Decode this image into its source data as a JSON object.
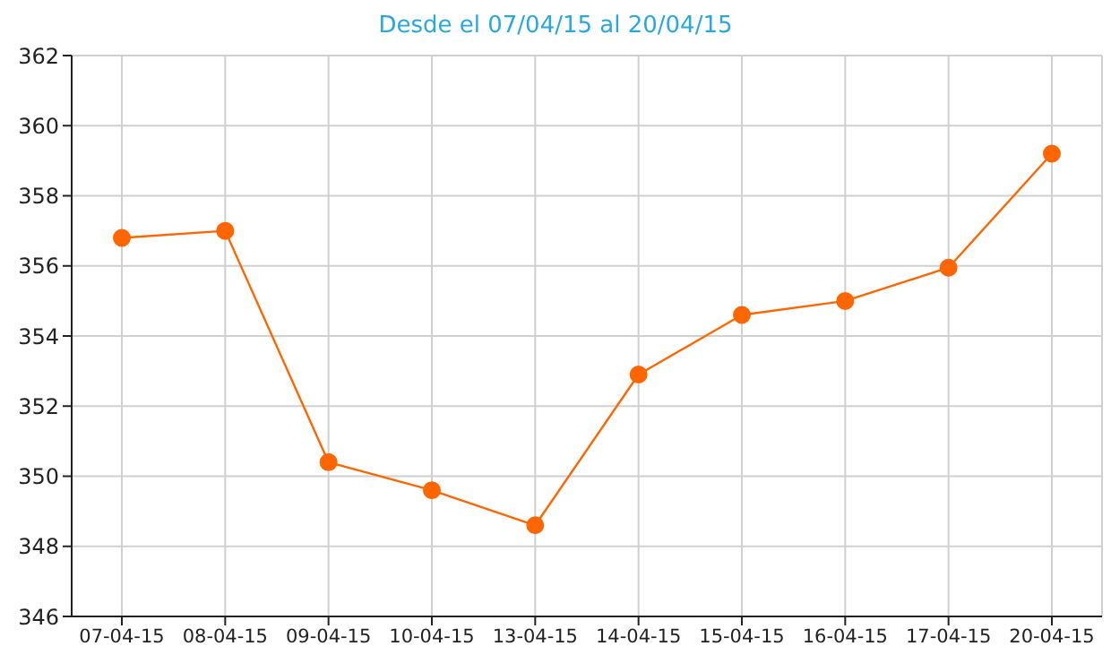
{
  "chart_data": {
    "type": "line",
    "subtitle": "Desde el 07/04/15 al 20/04/15",
    "categories": [
      "07-04-15",
      "08-04-15",
      "09-04-15",
      "10-04-15",
      "13-04-15",
      "14-04-15",
      "15-04-15",
      "16-04-15",
      "17-04-15",
      "20-04-15"
    ],
    "series": [
      {
        "color": "#ff6600",
        "values": [
          356.8,
          357.0,
          350.4,
          349.6,
          348.6,
          352.9,
          354.6,
          355.0,
          355.95,
          359.2
        ]
      }
    ],
    "ylim": [
      346,
      362
    ],
    "yticks": [
      346,
      348,
      350,
      352,
      354,
      356,
      358,
      360,
      362
    ],
    "grid": true,
    "marker": "circle",
    "line_style": "solid"
  }
}
